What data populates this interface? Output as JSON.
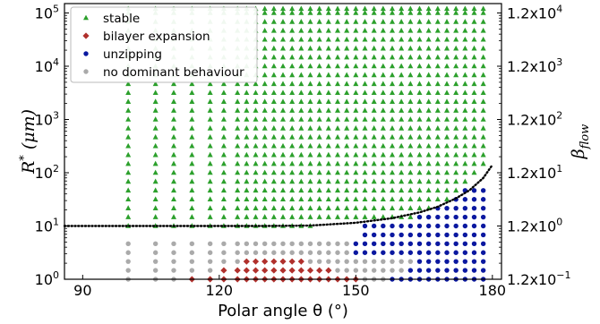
{
  "chart_data": {
    "type": "scatter",
    "xlabel": "Polar angle θ (°)",
    "ylabel": "R* (μm)",
    "ylabel_right": "β_flow",
    "xlim": [
      86,
      182
    ],
    "ylim": [
      1,
      150000
    ],
    "yscale": "log",
    "xticks": [
      "90",
      "120",
      "150",
      "180"
    ],
    "yticks": [
      "10^0",
      "10^1",
      "10^2",
      "10^3",
      "10^4",
      "10^5"
    ],
    "yticks_right": [
      "1.2x10^−1",
      "1.2x10^0",
      "1.2x10^1",
      "1.2x10^2",
      "1.2x10^3",
      "1.2x10^4"
    ],
    "grid": false,
    "legend_position": "top-left",
    "colors": {
      "stable": "#2ca02c",
      "bilayer": "#b0302c",
      "unzipping": "#0a18a0",
      "none": "#aaaaaa",
      "curve": "#000000"
    },
    "legend": [
      {
        "key": "stable",
        "label": "stable",
        "marker": "triangle"
      },
      {
        "key": "bilayer",
        "label": "bilayer expansion",
        "marker": "diamond"
      },
      {
        "key": "unzipping",
        "label": "unzipping",
        "marker": "circle"
      },
      {
        "key": "none",
        "label": "no dominant behaviour",
        "marker": "circle"
      }
    ],
    "grid_x": [
      100,
      106,
      110,
      114,
      118,
      121,
      124,
      126,
      128,
      130,
      132,
      134,
      136,
      138,
      140,
      142,
      144,
      146,
      148,
      150,
      152,
      154,
      156,
      158,
      160,
      162,
      164,
      166,
      168,
      170,
      172,
      174,
      176,
      178
    ],
    "stable_region": {
      "x_from": 100,
      "y_max": 120000,
      "threshold_curve": "y = 10 for x < 140, rising to 120 at x = 178",
      "threshold_exponent": 3.5
    },
    "bilayer_region": {
      "x_from": 112,
      "x_to": 150,
      "y_max": 3,
      "peak_x": 132
    },
    "unzipping_region": {
      "x_from": 150,
      "x_to": 178,
      "y_min": 1,
      "y_max": 60
    },
    "no_dominant_region": {
      "x_from": 100,
      "y_max": 5
    },
    "threshold_line": {
      "style": "dotted",
      "points": [
        [
          86,
          10
        ],
        [
          130,
          10
        ],
        [
          140,
          10.2
        ],
        [
          150,
          11.5
        ],
        [
          158,
          14
        ],
        [
          164,
          18
        ],
        [
          168,
          23
        ],
        [
          172,
          33
        ],
        [
          175,
          47
        ],
        [
          178,
          80
        ],
        [
          180,
          140
        ]
      ]
    }
  }
}
